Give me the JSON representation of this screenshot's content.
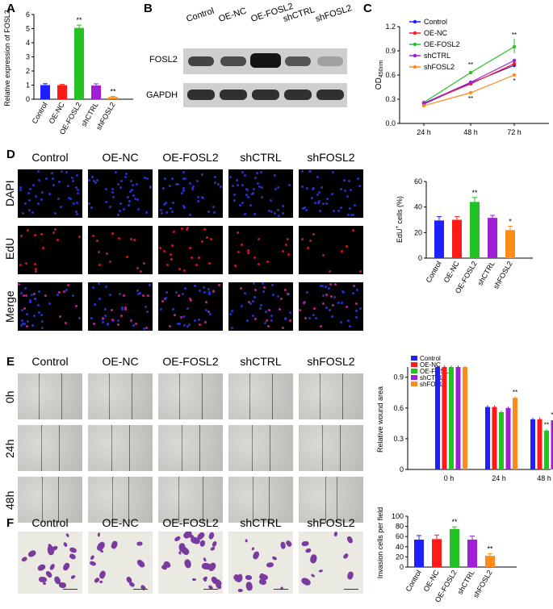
{
  "panels": {
    "A": "A",
    "B": "B",
    "C": "C",
    "D": "D",
    "E": "E",
    "F": "F"
  },
  "groups": [
    "Control",
    "OE-NC",
    "OE-FOSL2",
    "shCTRL",
    "shFOSL2"
  ],
  "colors": {
    "Control": "#1f1fff",
    "OE-NC": "#ff1a1a",
    "OE-FOSL2": "#22c322",
    "shCTRL": "#a01fd6",
    "shFOSL2": "#ff8c1a"
  },
  "panelA": {
    "chart_data": {
      "type": "bar",
      "categories": [
        "Control",
        "OE-NC",
        "OE-FOSL2",
        "shCTRL",
        "shFOSL2"
      ],
      "values": [
        1.0,
        1.0,
        5.05,
        0.97,
        0.15
      ],
      "errors": [
        0.1,
        0.05,
        0.2,
        0.12,
        0.05
      ],
      "sig": [
        "",
        "",
        "**",
        "",
        "**"
      ],
      "ylabel": "Relative expression of FOSL2",
      "ylim": [
        0,
        6
      ],
      "yticks": [
        "0",
        "1",
        "2",
        "3",
        "4",
        "5",
        "6"
      ]
    }
  },
  "panelB": {
    "lanes": [
      "Control",
      "OE-NC",
      "OE-FOSL2",
      "shCTRL",
      "shFOSL2"
    ],
    "rows": [
      "FOSL2",
      "GAPDH"
    ],
    "fosl2_intensity": [
      0.75,
      0.7,
      1.0,
      0.65,
      0.25
    ],
    "gapdh_intensity": [
      0.85,
      0.85,
      0.85,
      0.85,
      0.85
    ]
  },
  "panelC": {
    "chart_data": {
      "type": "line",
      "x": [
        "24 h",
        "48 h",
        "72 h"
      ],
      "series": [
        {
          "name": "Control",
          "values": [
            0.24,
            0.5,
            0.72
          ]
        },
        {
          "name": "OE-NC",
          "values": [
            0.25,
            0.49,
            0.74
          ]
        },
        {
          "name": "OE-FOSL2",
          "values": [
            0.26,
            0.63,
            0.95
          ]
        },
        {
          "name": "shCTRL",
          "values": [
            0.25,
            0.51,
            0.78
          ]
        },
        {
          "name": "shFOSL2",
          "values": [
            0.22,
            0.38,
            0.6
          ]
        }
      ],
      "ylabel": "OD450nm",
      "ylabel_main": "OD",
      "ylabel_sub": "450nm",
      "ylim": [
        0,
        1.2
      ],
      "yticks": [
        "0.0",
        "0.3",
        "0.6",
        "0.9",
        "1.2"
      ],
      "sig_top": [
        "",
        "**",
        "**"
      ],
      "sig_bottom": [
        "",
        "**",
        "*"
      ]
    }
  },
  "panelD": {
    "rows": [
      "DAPI",
      "EdU",
      "Merge"
    ],
    "chart_data": {
      "type": "bar",
      "categories": [
        "Control",
        "OE-NC",
        "OE-FOSL2",
        "shCTRL",
        "shFOSL2"
      ],
      "values": [
        29.5,
        30.0,
        44.0,
        31.5,
        22.0
      ],
      "errors": [
        3,
        2.5,
        3.5,
        2,
        3
      ],
      "sig": [
        "",
        "",
        "**",
        "",
        "*"
      ],
      "ylabel": "EdU+ cells (%)",
      "ylabel_main": "EdU",
      "ylabel_sup": "+",
      "ylabel_rest": " cells (%)",
      "ylim": [
        0,
        60
      ],
      "yticks": [
        "0",
        "20",
        "40",
        "60"
      ]
    }
  },
  "panelE": {
    "rows": [
      "0h",
      "24h",
      "48h"
    ],
    "chart_data": {
      "type": "bar",
      "categories": [
        "0 h",
        "24 h",
        "48 h"
      ],
      "series": [
        {
          "name": "Control",
          "values": [
            1.0,
            0.61,
            0.49
          ]
        },
        {
          "name": "OE-NC",
          "values": [
            1.0,
            0.61,
            0.49
          ]
        },
        {
          "name": "OE-FOSL2",
          "values": [
            1.0,
            0.56,
            0.38
          ]
        },
        {
          "name": "shCTRL",
          "values": [
            1.0,
            0.6,
            0.48
          ]
        },
        {
          "name": "shFOSL2",
          "values": [
            1.0,
            0.7,
            0.59
          ]
        }
      ],
      "sig": [
        [
          "",
          "",
          "",
          "",
          ""
        ],
        [
          "",
          "",
          "",
          "",
          "**"
        ],
        [
          "",
          "",
          "**",
          "**",
          "**"
        ]
      ],
      "ylabel": "Relative wound area",
      "ylim": [
        0,
        1.0
      ],
      "yticks": [
        "0",
        "0.3",
        "0.6",
        "0.9"
      ]
    }
  },
  "panelF": {
    "chart_data": {
      "type": "bar",
      "categories": [
        "Control",
        "OE-NC",
        "OE-FOSL2",
        "shCTRL",
        "shFOSL2"
      ],
      "values": [
        54,
        55,
        75,
        54,
        22
      ],
      "errors": [
        8,
        8,
        4,
        7,
        4
      ],
      "sig": [
        "",
        "",
        "**",
        "",
        "**"
      ],
      "ylabel": "Invasion cells per field",
      "ylim": [
        0,
        100
      ],
      "yticks": [
        "0",
        "20",
        "40",
        "60",
        "80",
        "100"
      ]
    }
  }
}
